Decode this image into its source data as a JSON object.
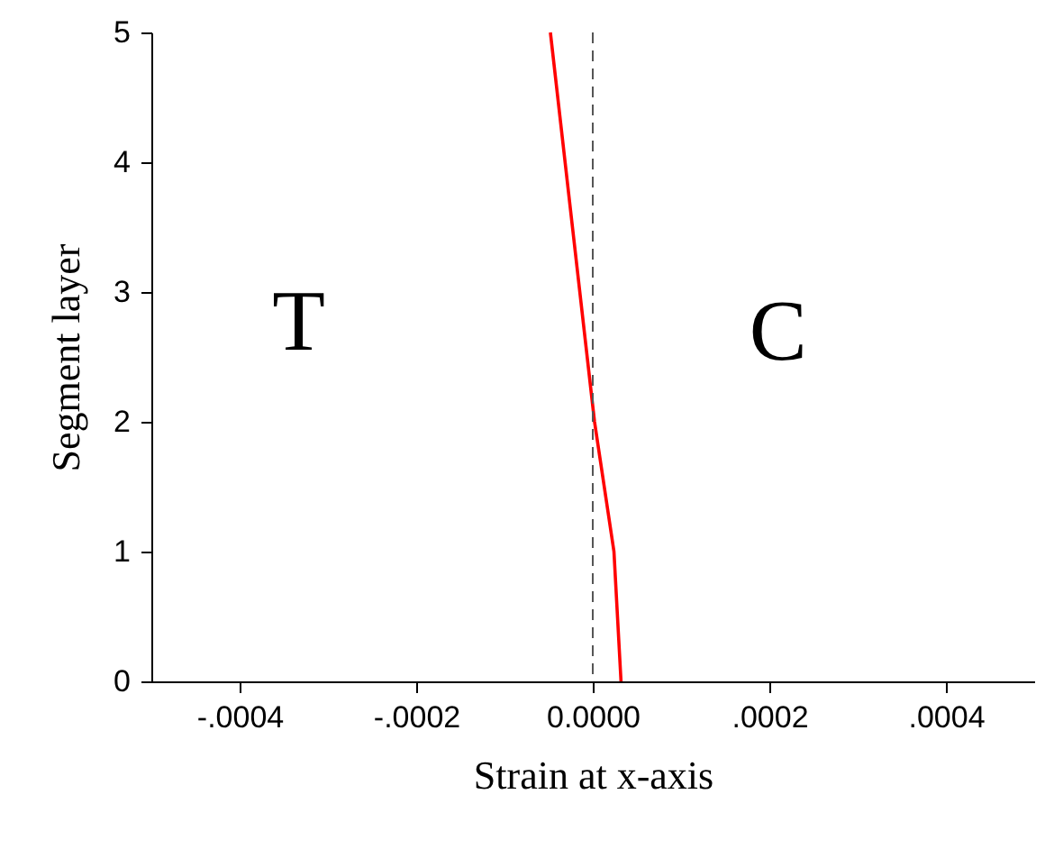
{
  "chart_data": {
    "type": "line",
    "xlabel": "Strain at x-axis",
    "ylabel": "Segment layer",
    "series": [
      {
        "color": "#ff0000",
        "x": [
          3.2e-05,
          2.4e-05,
          2e-06,
          -4.8e-05
        ],
        "values": [
          0,
          1,
          2,
          5
        ]
      }
    ],
    "xlim": [
      -0.0005,
      0.0005
    ],
    "ylim": [
      0,
      5
    ],
    "xticks": [
      {
        "value": -0.0004,
        "label": "-.0004"
      },
      {
        "value": -0.0002,
        "label": "-.0002"
      },
      {
        "value": 0,
        "label": "0.0000"
      },
      {
        "value": 0.0002,
        "label": ".0002"
      },
      {
        "value": 0.0004,
        "label": ".0004"
      }
    ],
    "yticks": [
      0,
      1,
      2,
      3,
      4,
      5
    ],
    "ref_lines": [
      {
        "axis": "x",
        "value": 0,
        "color": "#555555",
        "line_style": "dashed"
      }
    ],
    "annotations": [
      "T",
      "C"
    ],
    "grid": false
  }
}
